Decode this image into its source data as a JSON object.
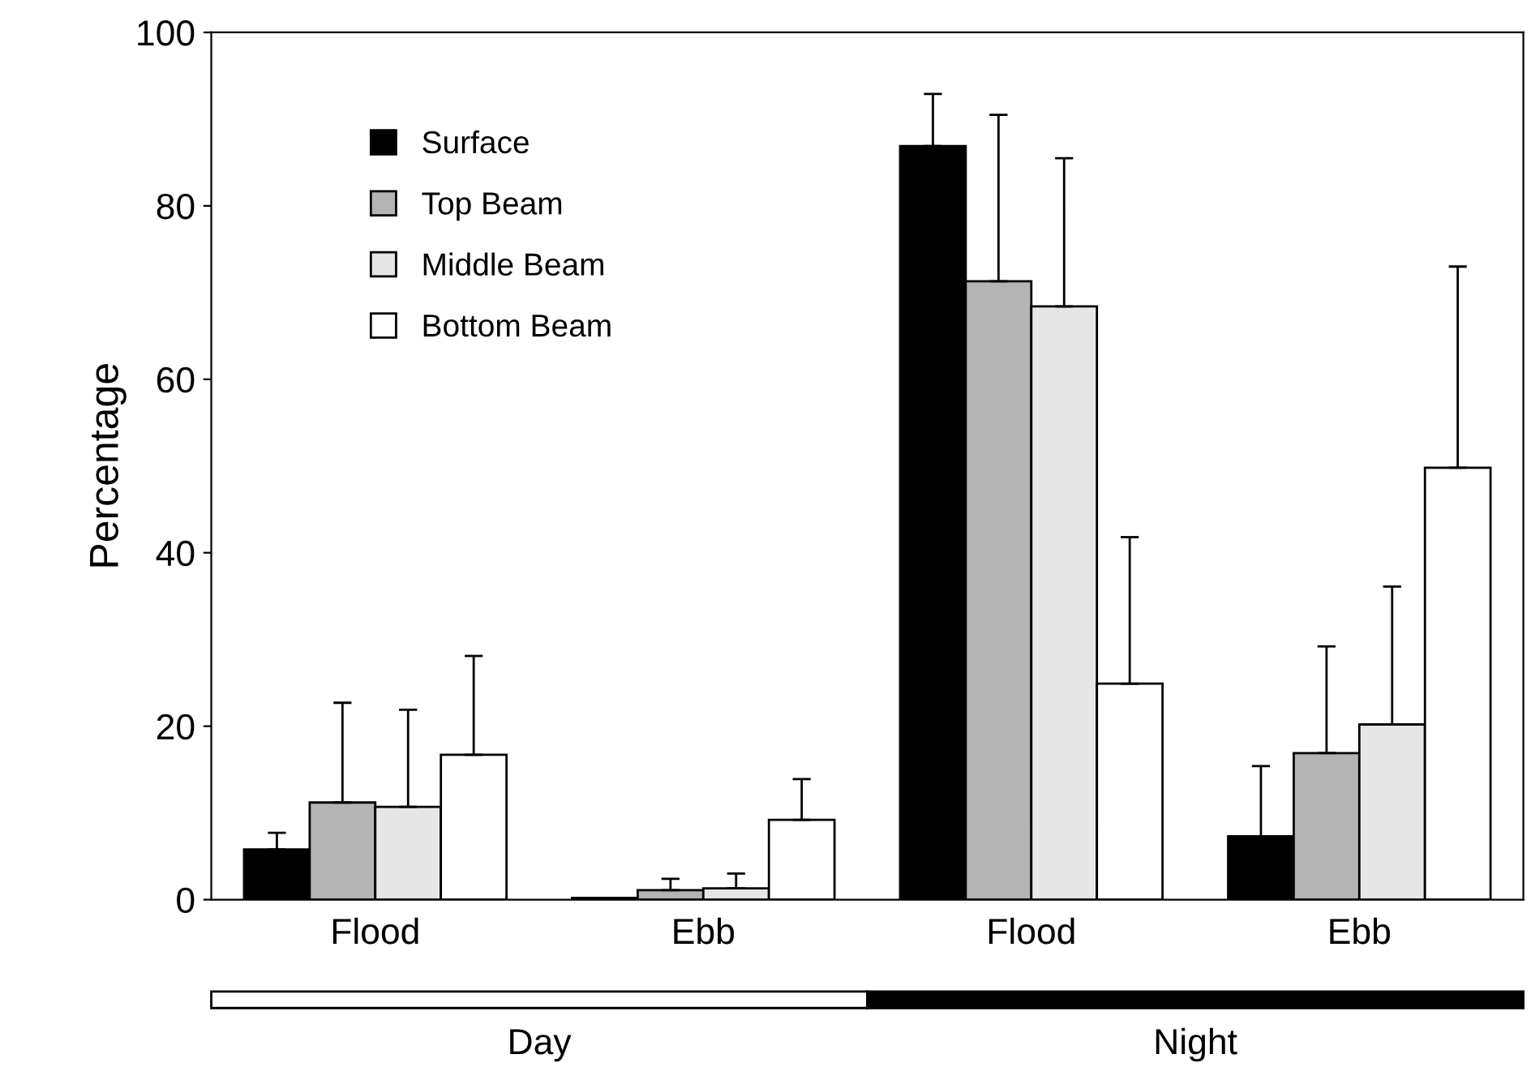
{
  "chart_data": {
    "type": "bar",
    "ylabel": "Percentage",
    "categories": [
      "Flood",
      "Ebb",
      "Flood",
      "Ebb"
    ],
    "series": [
      {
        "name": "Surface",
        "color": "#000000",
        "values": [
          5.8,
          0.2,
          86.9,
          7.3
        ],
        "errors": [
          [
            5.8,
            7.7
          ],
          null,
          [
            86.9,
            92.9
          ],
          [
            7.3,
            15.4
          ]
        ]
      },
      {
        "name": "Top Beam",
        "color": "#b4b4b4",
        "values": [
          11.2,
          1.1,
          71.3,
          16.9
        ],
        "errors": [
          [
            11.2,
            22.7
          ],
          [
            1.1,
            2.4
          ],
          [
            71.3,
            90.5
          ],
          [
            16.9,
            29.2
          ]
        ]
      },
      {
        "name": "Middle Beam",
        "color": "#e6e6e6",
        "values": [
          10.7,
          1.3,
          68.4,
          20.2
        ],
        "errors": [
          [
            10.7,
            21.9
          ],
          [
            1.3,
            3.0
          ],
          [
            68.4,
            85.5
          ],
          [
            20.2,
            36.1
          ]
        ]
      },
      {
        "name": "Bottom Beam",
        "color": "#ffffff",
        "values": [
          16.7,
          9.2,
          24.9,
          49.8
        ],
        "errors": [
          [
            16.7,
            28.1
          ],
          [
            9.2,
            13.9
          ],
          [
            24.9,
            41.8
          ],
          [
            49.8,
            73.0
          ]
        ]
      }
    ],
    "ylim": [
      0,
      100
    ],
    "yticks": [
      0,
      20,
      40,
      60,
      80,
      100
    ],
    "grid": false,
    "legend": "top left",
    "annotations": [
      "Day",
      "Night"
    ]
  }
}
